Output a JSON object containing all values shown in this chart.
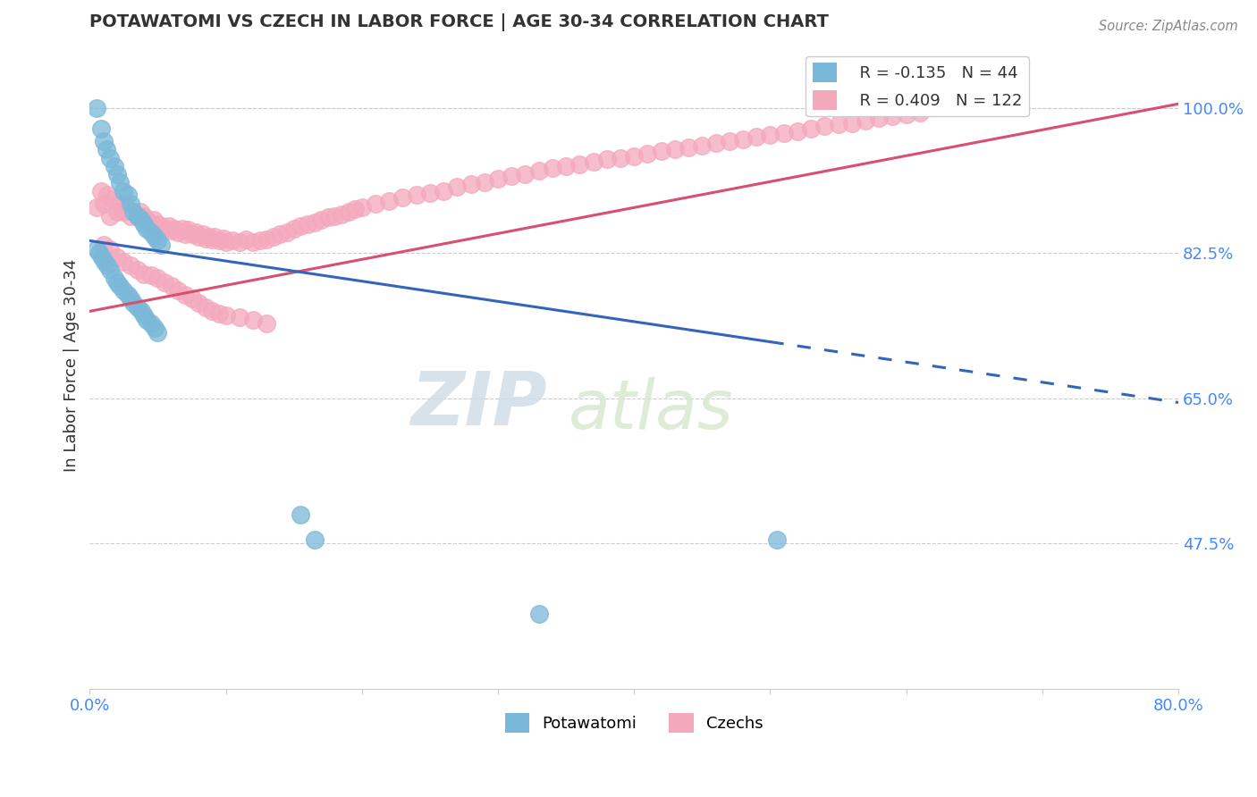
{
  "title": "POTAWATOMI VS CZECH IN LABOR FORCE | AGE 30-34 CORRELATION CHART",
  "source": "Source: ZipAtlas.com",
  "xlabel_potawatomi": "Potawatomi",
  "xlabel_czechs": "Czechs",
  "ylabel": "In Labor Force | Age 30-34",
  "xlim": [
    0.0,
    0.8
  ],
  "ylim": [
    0.3,
    1.08
  ],
  "yticks": [
    0.475,
    0.65,
    0.825,
    1.0
  ],
  "ytick_labels": [
    "47.5%",
    "65.0%",
    "82.5%",
    "100.0%"
  ],
  "xticks": [
    0.0,
    0.1,
    0.2,
    0.3,
    0.4,
    0.5,
    0.6,
    0.7,
    0.8
  ],
  "xtick_labels": [
    "0.0%",
    "",
    "",
    "",
    "",
    "",
    "",
    "",
    "80.0%"
  ],
  "potawatomi_color": "#7ab8d9",
  "czech_color": "#f4a8bc",
  "trend_potawatomi_color": "#3366bb",
  "trend_czech_color": "#d94f70",
  "R_potawatomi": -0.135,
  "N_potawatomi": 44,
  "R_czech": 0.409,
  "N_czech": 122,
  "pot_trend_x0": 0.0,
  "pot_trend_y0": 0.84,
  "pot_trend_x1": 0.8,
  "pot_trend_y1": 0.645,
  "pot_trend_solid_end": 0.5,
  "czech_trend_x0": 0.0,
  "czech_trend_y0": 0.755,
  "czech_trend_x1": 0.8,
  "czech_trend_y1": 1.005,
  "potawatomi_x": [
    0.005,
    0.008,
    0.01,
    0.012,
    0.015,
    0.018,
    0.02,
    0.022,
    0.025,
    0.028,
    0.03,
    0.032,
    0.035,
    0.038,
    0.04,
    0.042,
    0.045,
    0.048,
    0.05,
    0.052,
    0.005,
    0.007,
    0.009,
    0.011,
    0.013,
    0.015,
    0.018,
    0.02,
    0.022,
    0.025,
    0.028,
    0.03,
    0.032,
    0.035,
    0.038,
    0.04,
    0.042,
    0.045,
    0.048,
    0.05,
    0.155,
    0.165,
    0.33,
    0.505
  ],
  "potawatomi_y": [
    1.0,
    0.975,
    0.96,
    0.95,
    0.94,
    0.93,
    0.92,
    0.91,
    0.9,
    0.895,
    0.885,
    0.875,
    0.87,
    0.865,
    0.86,
    0.855,
    0.85,
    0.845,
    0.84,
    0.835,
    0.83,
    0.825,
    0.82,
    0.815,
    0.81,
    0.805,
    0.795,
    0.79,
    0.785,
    0.78,
    0.775,
    0.77,
    0.765,
    0.76,
    0.755,
    0.75,
    0.745,
    0.74,
    0.735,
    0.73,
    0.51,
    0.48,
    0.39,
    0.48
  ],
  "czech_x": [
    0.005,
    0.008,
    0.01,
    0.013,
    0.015,
    0.017,
    0.02,
    0.022,
    0.025,
    0.027,
    0.03,
    0.032,
    0.035,
    0.037,
    0.04,
    0.042,
    0.045,
    0.047,
    0.05,
    0.053,
    0.055,
    0.058,
    0.06,
    0.062,
    0.065,
    0.068,
    0.07,
    0.072,
    0.075,
    0.078,
    0.08,
    0.083,
    0.085,
    0.088,
    0.09,
    0.092,
    0.095,
    0.098,
    0.1,
    0.105,
    0.11,
    0.115,
    0.12,
    0.125,
    0.13,
    0.135,
    0.14,
    0.145,
    0.15,
    0.155,
    0.16,
    0.165,
    0.17,
    0.175,
    0.18,
    0.185,
    0.19,
    0.195,
    0.2,
    0.21,
    0.22,
    0.23,
    0.24,
    0.25,
    0.26,
    0.27,
    0.28,
    0.29,
    0.3,
    0.31,
    0.32,
    0.33,
    0.34,
    0.35,
    0.36,
    0.37,
    0.38,
    0.39,
    0.4,
    0.41,
    0.42,
    0.43,
    0.44,
    0.45,
    0.46,
    0.47,
    0.48,
    0.49,
    0.5,
    0.51,
    0.52,
    0.53,
    0.54,
    0.55,
    0.56,
    0.57,
    0.58,
    0.59,
    0.6,
    0.61,
    0.01,
    0.015,
    0.02,
    0.025,
    0.03,
    0.035,
    0.04,
    0.045,
    0.05,
    0.055,
    0.06,
    0.065,
    0.07,
    0.075,
    0.08,
    0.085,
    0.09,
    0.095,
    0.1,
    0.11,
    0.12,
    0.13
  ],
  "czech_y": [
    0.88,
    0.9,
    0.885,
    0.895,
    0.87,
    0.89,
    0.875,
    0.885,
    0.875,
    0.88,
    0.87,
    0.875,
    0.87,
    0.875,
    0.87,
    0.865,
    0.86,
    0.865,
    0.86,
    0.858,
    0.855,
    0.858,
    0.852,
    0.855,
    0.85,
    0.855,
    0.848,
    0.853,
    0.848,
    0.85,
    0.845,
    0.848,
    0.843,
    0.845,
    0.842,
    0.845,
    0.84,
    0.843,
    0.838,
    0.84,
    0.838,
    0.842,
    0.838,
    0.84,
    0.842,
    0.845,
    0.848,
    0.85,
    0.855,
    0.858,
    0.86,
    0.862,
    0.865,
    0.868,
    0.87,
    0.872,
    0.875,
    0.878,
    0.88,
    0.885,
    0.888,
    0.892,
    0.895,
    0.898,
    0.9,
    0.905,
    0.908,
    0.91,
    0.915,
    0.918,
    0.92,
    0.925,
    0.928,
    0.93,
    0.932,
    0.935,
    0.938,
    0.94,
    0.942,
    0.945,
    0.948,
    0.95,
    0.952,
    0.955,
    0.958,
    0.96,
    0.962,
    0.965,
    0.968,
    0.97,
    0.972,
    0.975,
    0.978,
    0.98,
    0.982,
    0.985,
    0.988,
    0.99,
    0.992,
    0.995,
    0.835,
    0.83,
    0.82,
    0.815,
    0.81,
    0.805,
    0.8,
    0.798,
    0.795,
    0.79,
    0.785,
    0.78,
    0.775,
    0.77,
    0.765,
    0.76,
    0.755,
    0.752,
    0.75,
    0.748,
    0.745,
    0.74
  ]
}
